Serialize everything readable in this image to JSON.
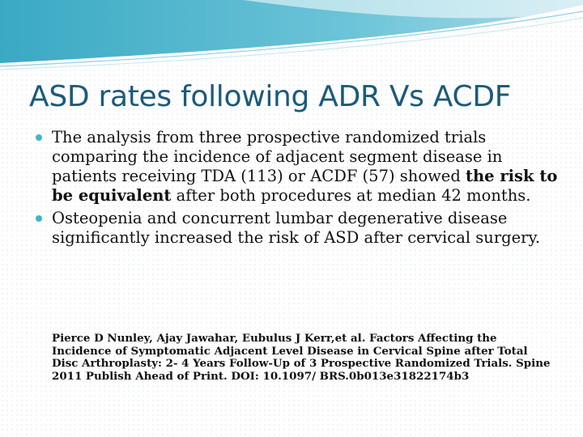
{
  "slide": {
    "title": "ASD rates following ADR Vs ACDF",
    "bullets": [
      {
        "text_before": "The analysis from three prospective randomized trials comparing the  incidence of adjacent segment disease in patients receiving TDA (113) or ACDF (57) showed ",
        "text_bold": "the risk to be equivalent",
        "text_after": " after both procedures at median 42 months."
      },
      {
        "text": "Osteopenia and concurrent lumbar degenerative disease significantly increased the risk of ASD after cervical surgery."
      }
    ],
    "reference": "Pierce D Nunley, Ajay Jawahar, Eubulus J Kerr,et al.  Factors Affecting the Incidence of Symptomatic Adjacent Level Disease in Cervical Spine after Total Disc Arthroplasty: 2- 4 Years Follow-Up of  3 Prospective Randomized Trials. Spine 2011 Publish Ahead of Print. DOI: 10.1097/ BRS.0b013e31822174b3"
  },
  "colors": {
    "title": "#1c5a7a",
    "bullet": "#3fb6c9",
    "wave_dark": "#3aa9c4",
    "wave_light": "#a9dbe8"
  }
}
